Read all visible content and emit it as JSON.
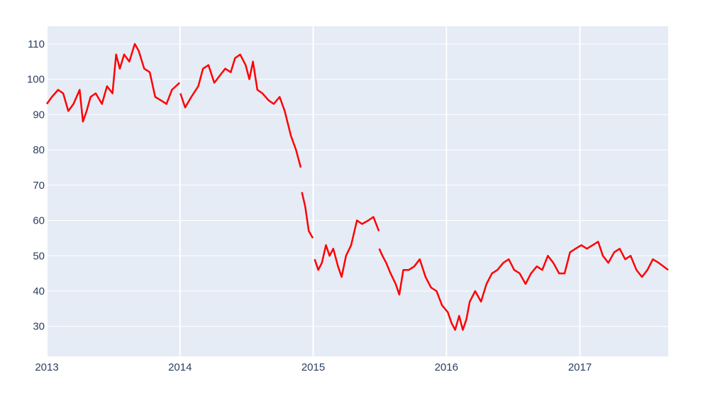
{
  "chart_data": {
    "type": "line",
    "title": "",
    "xlabel": "",
    "ylabel": "",
    "x_range": [
      "2013-01-01",
      "2017-08-31"
    ],
    "ylim": [
      21.5,
      115
    ],
    "x_ticks": [
      {
        "date": "2013-01-01",
        "label": "2013"
      },
      {
        "date": "2014-01-01",
        "label": "2014"
      },
      {
        "date": "2015-01-01",
        "label": "2015"
      },
      {
        "date": "2016-01-01",
        "label": "2016"
      },
      {
        "date": "2017-01-01",
        "label": "2017"
      }
    ],
    "y_ticks": [
      30,
      40,
      50,
      60,
      70,
      80,
      90,
      100,
      110
    ],
    "grid": true,
    "legend": "none",
    "colors": {
      "plot_bg": "#e5ecf6",
      "grid": "#ffffff",
      "line": "#ff0000",
      "tick_text": "#2a3f5f"
    },
    "series": [
      {
        "segments": [
          {
            "x": [
              "2013-01-01",
              "2013-01-15",
              "2013-02-01",
              "2013-02-15",
              "2013-03-01",
              "2013-03-15",
              "2013-04-01",
              "2013-04-10",
              "2013-04-20",
              "2013-05-01",
              "2013-05-15",
              "2013-06-01",
              "2013-06-15",
              "2013-06-30",
              "2013-07-10",
              "2013-07-20",
              "2013-08-01",
              "2013-08-15",
              "2013-08-30",
              "2013-09-10",
              "2013-09-25",
              "2013-10-10",
              "2013-10-25",
              "2013-11-10",
              "2013-11-25",
              "2013-12-10",
              "2013-12-31"
            ],
            "y": [
              93,
              95,
              97,
              96,
              91,
              93,
              97,
              88,
              91,
              95,
              96,
              93,
              98,
              96,
              107,
              103,
              107,
              105,
              110,
              108,
              103,
              102,
              95,
              94,
              93,
              97,
              99
            ]
          },
          {
            "x": [
              "2014-01-02",
              "2014-01-15",
              "2014-02-01",
              "2014-02-20",
              "2014-03-05",
              "2014-03-20",
              "2014-04-05",
              "2014-04-20",
              "2014-05-05",
              "2014-05-20",
              "2014-06-01",
              "2014-06-15",
              "2014-06-30",
              "2014-07-10",
              "2014-07-20",
              "2014-08-01",
              "2014-08-15",
              "2014-09-01",
              "2014-09-15",
              "2014-10-01",
              "2014-10-15",
              "2014-11-01",
              "2014-11-15",
              "2014-11-28"
            ],
            "y": [
              96,
              92,
              95,
              98,
              103,
              104,
              99,
              101,
              103,
              102,
              106,
              107,
              104,
              100,
              105,
              97,
              96,
              94,
              93,
              95,
              91,
              84,
              80,
              75
            ]
          },
          {
            "x": [
              "2014-12-01",
              "2014-12-10",
              "2014-12-20",
              "2014-12-31"
            ],
            "y": [
              68,
              64,
              57,
              55
            ]
          },
          {
            "x": [
              "2015-01-05",
              "2015-01-15",
              "2015-01-25",
              "2015-02-05",
              "2015-02-15",
              "2015-02-25",
              "2015-03-10",
              "2015-03-20",
              "2015-04-01",
              "2015-04-15",
              "2015-05-01",
              "2015-05-15",
              "2015-06-01",
              "2015-06-15",
              "2015-06-30"
            ],
            "y": [
              49,
              46,
              48,
              53,
              50,
              52,
              47,
              44,
              50,
              53,
              60,
              59,
              60,
              61,
              57
            ]
          },
          {
            "x": [
              "2015-07-01",
              "2015-07-10",
              "2015-07-20",
              "2015-08-01",
              "2015-08-15",
              "2015-08-25",
              "2015-09-05",
              "2015-09-20",
              "2015-10-05",
              "2015-10-20",
              "2015-11-05",
              "2015-11-20",
              "2015-12-05",
              "2015-12-20",
              "2016-01-05",
              "2016-01-15",
              "2016-01-25",
              "2016-02-05",
              "2016-02-15",
              "2016-02-25",
              "2016-03-05",
              "2016-03-20",
              "2016-04-05",
              "2016-04-20",
              "2016-05-05",
              "2016-05-20",
              "2016-06-05",
              "2016-06-20",
              "2016-07-05",
              "2016-07-20",
              "2016-08-05",
              "2016-08-20",
              "2016-09-05",
              "2016-09-20",
              "2016-10-05",
              "2016-10-20",
              "2016-11-05",
              "2016-11-20",
              "2016-12-05",
              "2016-12-20",
              "2017-01-05",
              "2017-01-20",
              "2017-02-05",
              "2017-02-20",
              "2017-03-05",
              "2017-03-20",
              "2017-04-05",
              "2017-04-20",
              "2017-05-05",
              "2017-05-20",
              "2017-06-05",
              "2017-06-20",
              "2017-07-05",
              "2017-07-20",
              "2017-08-05",
              "2017-08-31"
            ],
            "y": [
              52,
              50,
              48,
              45,
              42,
              39,
              46,
              46,
              47,
              49,
              44,
              41,
              40,
              36,
              34,
              31,
              29,
              33,
              29,
              32,
              37,
              40,
              37,
              42,
              45,
              46,
              48,
              49,
              46,
              45,
              42,
              45,
              47,
              46,
              50,
              48,
              45,
              45,
              51,
              52,
              53,
              52,
              53,
              54,
              50,
              48,
              51,
              52,
              49,
              50,
              46,
              44,
              46,
              49,
              48,
              46
            ]
          }
        ]
      }
    ]
  }
}
